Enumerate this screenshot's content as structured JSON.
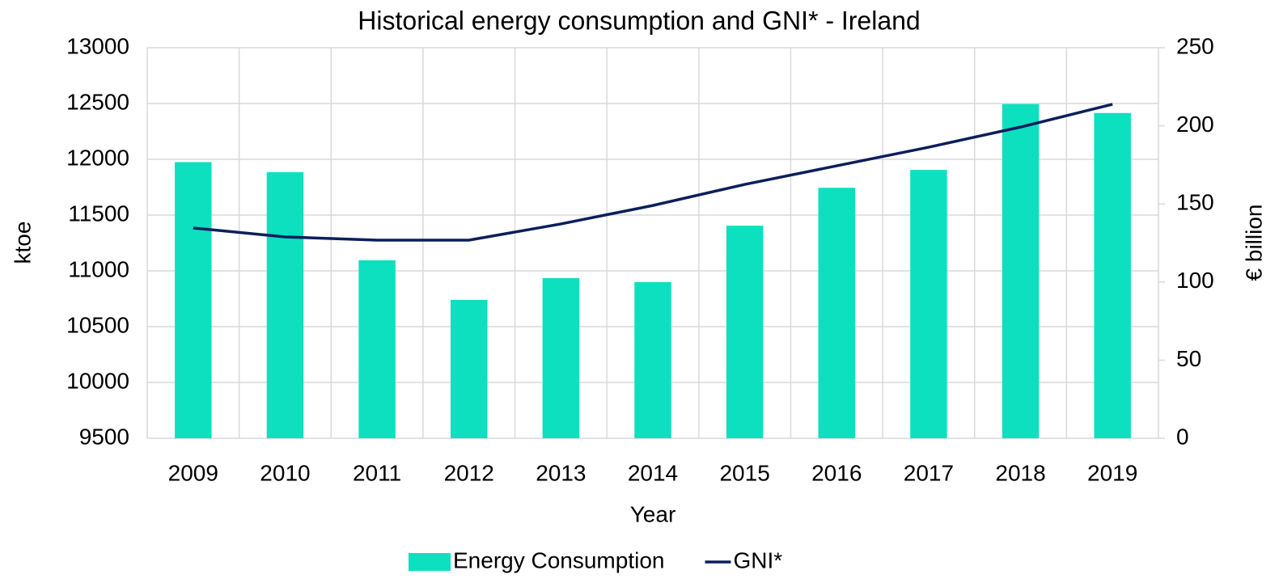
{
  "chart_data": {
    "type": "bar_line",
    "title": "Historical energy consumption and GNI* - Ireland",
    "x_label": "Year",
    "y_label": "ktoe",
    "y2_label": "€ billion",
    "categories": [
      "2009",
      "2010",
      "2011",
      "2012",
      "2013",
      "2014",
      "2015",
      "2016",
      "2017",
      "2018",
      "2019"
    ],
    "series": [
      {
        "name": "Energy Consumption",
        "type": "bar",
        "color": "#0de0bf",
        "axis": "y",
        "values": [
          11975,
          11885,
          11095,
          10740,
          10935,
          10900,
          11405,
          11745,
          11905,
          12495,
          12415
        ]
      },
      {
        "name": "GNI*",
        "type": "line",
        "color": "#0b1f5c",
        "axis": "y2",
        "values": [
          134.6,
          128.9,
          126.8,
          126.8,
          137.2,
          149.0,
          162.5,
          174.4,
          186.3,
          199.2,
          213.8
        ]
      }
    ],
    "ylim": [
      9500,
      13000
    ],
    "yticks": [
      9500,
      10000,
      10500,
      11000,
      11500,
      12000,
      12500,
      13000
    ],
    "y2lim": [
      0,
      250
    ],
    "y2ticks": [
      0,
      50,
      100,
      150,
      200,
      250
    ],
    "grid": true,
    "legend": "bottom"
  }
}
